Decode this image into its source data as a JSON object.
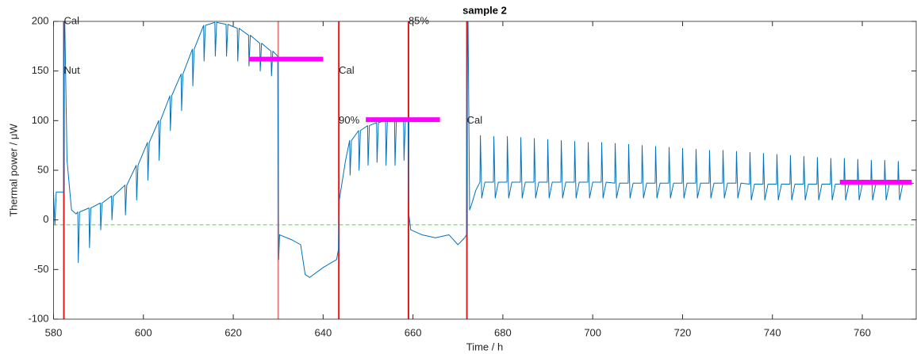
{
  "chart_data": {
    "type": "line",
    "title": "sample 2",
    "x_label": "Time / h",
    "y_label": "Thermal power / μW",
    "xlim": [
      580,
      772
    ],
    "ylim": [
      -100,
      200
    ],
    "xticks": [
      580,
      600,
      620,
      640,
      660,
      680,
      700,
      720,
      740,
      760
    ],
    "yticks": [
      -100,
      -50,
      0,
      50,
      100,
      150,
      200
    ],
    "x": [
      580,
      580.3,
      580.6,
      582.2,
      582.4,
      583,
      584,
      585,
      585.4,
      585.5,
      585.8,
      587.9,
      588,
      588.3,
      590.4,
      590.5,
      590.8,
      592.9,
      593,
      593.3,
      595.9,
      596,
      596.3,
      598.4,
      598.5,
      598.8,
      600.9,
      601,
      601.3,
      603.4,
      603.5,
      603.8,
      605.9,
      606,
      606.3,
      608.4,
      608.5,
      608.8,
      610.9,
      611,
      611.3,
      613.4,
      613.5,
      613.8,
      615.9,
      616,
      616.3,
      618.4,
      618.5,
      618.8,
      620.9,
      621,
      621.3,
      623.4,
      623.5,
      623.8,
      625.9,
      626,
      626.3,
      628.4,
      628.5,
      628.8,
      629.9,
      630.1,
      630.3,
      633,
      635,
      636,
      637,
      640,
      643,
      643.4,
      643.6,
      645,
      645.9,
      646,
      646.3,
      647.9,
      648,
      648.3,
      649.9,
      650,
      650.3,
      651.9,
      652,
      652.3,
      653.9,
      654,
      654.3,
      655.9,
      656,
      656.3,
      657.9,
      658,
      658.3,
      658.9,
      659.1,
      659.5,
      662,
      665,
      668,
      670,
      671.5,
      671.9,
      672.2,
      672.6,
      673,
      674,
      674.9,
      675,
      675.3,
      676,
      677.9,
      678,
      678.3,
      679,
      680.9,
      681,
      681.3,
      682,
      683.9,
      684,
      684.3,
      685,
      686.9,
      687,
      687.3,
      688,
      689.9,
      690,
      690.3,
      691,
      692.9,
      693,
      693.3,
      694,
      695.9,
      696,
      696.3,
      697,
      698.9,
      699,
      699.3,
      700,
      701.9,
      702,
      702.3,
      703,
      704.9,
      705,
      705.3,
      706,
      707.9,
      708,
      708.3,
      709,
      710.9,
      711,
      711.3,
      712,
      713.9,
      714,
      714.3,
      715,
      716.9,
      717,
      717.3,
      718,
      719.9,
      720,
      720.3,
      721,
      722.9,
      723,
      723.3,
      724,
      725.9,
      726,
      726.3,
      727,
      728.9,
      729,
      729.3,
      730,
      731.9,
      732,
      732.3,
      733,
      734.9,
      735,
      735.3,
      736,
      737.9,
      738,
      738.3,
      739,
      740.9,
      741,
      741.3,
      742,
      743.9,
      744,
      744.3,
      745,
      746.9,
      747,
      747.3,
      748,
      749.9,
      750,
      750.3,
      751,
      752.9,
      753,
      753.3,
      754,
      755.9,
      756,
      756.3,
      757,
      758.9,
      759,
      759.3,
      760,
      761.9,
      762,
      762.3,
      763,
      764.9,
      765,
      765.3,
      766,
      767.9,
      768,
      768.3,
      769,
      771.5
    ],
    "series": [
      {
        "color": "#0072bd",
        "values": [
          28,
          -5,
          28,
          28,
          230,
          60,
          10,
          6,
          8,
          -43,
          8,
          12,
          -28,
          12,
          17,
          -10,
          17,
          24,
          0,
          24,
          35,
          5,
          35,
          55,
          20,
          55,
          78,
          40,
          78,
          100,
          60,
          100,
          125,
          90,
          125,
          147,
          110,
          147,
          172,
          135,
          172,
          196,
          160,
          196,
          199,
          165,
          199,
          197,
          165,
          197,
          193,
          160,
          193,
          186,
          155,
          186,
          178,
          150,
          178,
          170,
          145,
          170,
          165,
          -40,
          -15,
          -20,
          -25,
          -55,
          -58,
          -48,
          -40,
          -30,
          20,
          60,
          80,
          45,
          80,
          90,
          50,
          90,
          95,
          55,
          95,
          98,
          58,
          98,
          100,
          55,
          100,
          100,
          55,
          100,
          100,
          60,
          100,
          100,
          5,
          -10,
          -15,
          -18,
          -15,
          -25,
          -18,
          -15,
          230,
          10,
          15,
          30,
          38,
          85,
          22,
          38,
          38,
          84,
          22,
          38,
          38,
          84,
          22,
          38,
          38,
          83,
          22,
          38,
          38,
          82,
          22,
          38,
          38,
          81,
          22,
          38,
          38,
          80,
          22,
          38,
          38,
          79,
          22,
          38,
          38,
          78,
          22,
          38,
          38,
          78,
          22,
          38,
          37,
          77,
          22,
          37,
          37,
          76,
          22,
          37,
          37,
          75,
          22,
          37,
          37,
          74,
          22,
          37,
          37,
          73,
          22,
          37,
          37,
          72,
          22,
          37,
          37,
          71,
          22,
          37,
          37,
          70,
          22,
          37,
          37,
          70,
          22,
          37,
          37,
          69,
          22,
          37,
          36,
          68,
          20,
          36,
          36,
          67,
          20,
          36,
          36,
          66,
          20,
          36,
          36,
          65,
          20,
          36,
          36,
          64,
          20,
          36,
          36,
          63,
          20,
          36,
          36,
          62,
          20,
          36,
          36,
          62,
          20,
          36,
          36,
          61,
          20,
          36,
          36,
          60,
          20,
          36,
          36,
          60,
          20,
          36,
          36,
          59,
          20,
          36,
          37
        ]
      }
    ],
    "vlines": [
      {
        "x": 582.3,
        "color": "#e41a1c"
      },
      {
        "x": 630,
        "color": "#f08080"
      },
      {
        "x": 643.5,
        "color": "#e41a1c"
      },
      {
        "x": 659,
        "color": "#e41a1c"
      },
      {
        "x": 672,
        "color": "#e41a1c"
      }
    ],
    "segments": [
      {
        "x": [
          623.5,
          640
        ],
        "y": 162,
        "color": "#ff00ff"
      },
      {
        "x": [
          649.5,
          666
        ],
        "y": 101,
        "color": "#ff00ff"
      },
      {
        "x": [
          755,
          771
        ],
        "y": 38,
        "color": "#ff00ff"
      }
    ],
    "hline": {
      "y": -5,
      "color": "#4fd64f",
      "style": "dashed"
    },
    "annotations": [
      {
        "text": "Cal",
        "x": 582.3,
        "y": 200
      },
      {
        "text": "Nut",
        "x": 582.3,
        "y": 150
      },
      {
        "text": "Cal",
        "x": 643.5,
        "y": 150
      },
      {
        "text": "90%",
        "x": 643.5,
        "y": 100
      },
      {
        "text": "85%",
        "x": 659,
        "y": 200
      },
      {
        "text": "Cal",
        "x": 672,
        "y": 100
      }
    ]
  }
}
